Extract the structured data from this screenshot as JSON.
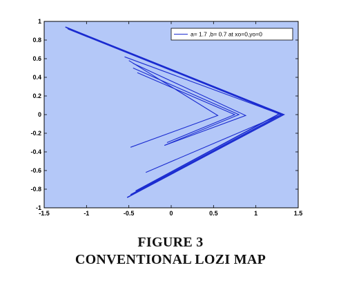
{
  "figure": {
    "caption_line1": "FIGURE 3",
    "caption_line2": "CONVENTIONAL LOZI MAP"
  },
  "chart_data": {
    "type": "line",
    "title": "",
    "xlabel": "",
    "ylabel": "",
    "xlim": [
      -1.5,
      1.5
    ],
    "ylim": [
      -1,
      1
    ],
    "xticks": [
      -1.5,
      -1,
      -0.5,
      0,
      0.5,
      1,
      1.5
    ],
    "yticks": [
      -1,
      -0.8,
      -0.6,
      -0.4,
      -0.2,
      0,
      0.2,
      0.4,
      0.6,
      0.8,
      1
    ],
    "xtick_labels": [
      "-1.5",
      "-1",
      "-0.5",
      "0",
      "0.5",
      "1",
      "1.5"
    ],
    "ytick_labels": [
      "-1",
      "-0.8",
      "-0.6",
      "-0.4",
      "-0.2",
      "0",
      "0.2",
      "0.4",
      "0.6",
      "0.8",
      "1"
    ],
    "grid": false,
    "legend": {
      "text": "a= 1.7 ,b= 0.7 at xo=0,yo=0",
      "position": "top-right"
    },
    "colors": {
      "background": "#b4c8f8",
      "line": "#1a2bd0"
    },
    "series": [
      {
        "x": [
          -1.25,
          1.33,
          -0.52
        ],
        "y": [
          0.94,
          0.0,
          -0.89
        ]
      },
      {
        "x": [
          -1.23,
          1.3,
          -0.48
        ],
        "y": [
          0.93,
          0.0,
          -0.86
        ]
      },
      {
        "x": [
          -1.22,
          1.28,
          -0.42
        ],
        "y": [
          0.92,
          0.01,
          -0.82
        ]
      },
      {
        "x": [
          -0.55,
          1.3,
          -0.3
        ],
        "y": [
          0.62,
          0.0,
          -0.62
        ]
      },
      {
        "x": [
          -0.45,
          0.88,
          -0.08
        ],
        "y": [
          0.55,
          -0.01,
          -0.33
        ]
      },
      {
        "x": [
          -0.45,
          0.8,
          -0.08
        ],
        "y": [
          0.5,
          0.0,
          -0.33
        ]
      },
      {
        "x": [
          -0.5,
          0.55,
          -0.48
        ],
        "y": [
          0.58,
          -0.01,
          -0.35
        ]
      },
      {
        "x": [
          -0.4,
          0.75,
          -0.05
        ],
        "y": [
          0.45,
          0.0,
          -0.3
        ]
      }
    ]
  }
}
